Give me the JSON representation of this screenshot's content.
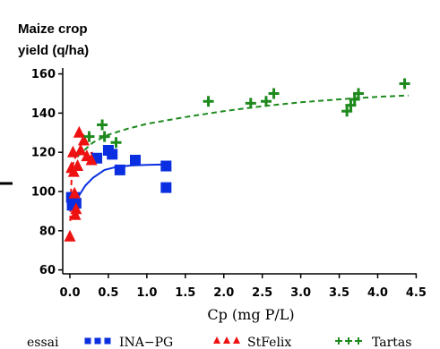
{
  "chart_data": {
    "type": "scatter",
    "ylabel_line1": "Maize crop",
    "ylabel_line2": "yield (q/ha)",
    "xlabel": "Cp (mg P/L)",
    "xlim": [
      0,
      4.6
    ],
    "ylim": [
      58,
      163
    ],
    "xticks": [
      0.0,
      0.5,
      1.0,
      1.5,
      2.0,
      2.5,
      3.0,
      3.5,
      4.0,
      4.5
    ],
    "xtick_labels": [
      "0.0",
      "0.5",
      "1.0",
      "1.5",
      "2.0",
      "2.5",
      "3.0",
      "3.5",
      "4.0",
      "4.5"
    ],
    "yticks": [
      60,
      80,
      100,
      120,
      140,
      160
    ],
    "ytick_labels": [
      "60",
      "80",
      "100",
      "120",
      "140",
      "160"
    ],
    "legend_title": "essai",
    "series": [
      {
        "name": "INA−PG",
        "color": "#0a2fe0",
        "marker": "square",
        "points": [
          [
            0.02,
            97
          ],
          [
            0.03,
            93
          ],
          [
            0.05,
            95
          ],
          [
            0.06,
            97
          ],
          [
            0.08,
            94
          ],
          [
            0.35,
            117
          ],
          [
            0.5,
            121
          ],
          [
            0.55,
            119
          ],
          [
            0.65,
            111
          ],
          [
            0.85,
            116
          ],
          [
            1.25,
            113
          ],
          [
            1.25,
            102
          ]
        ],
        "fit": [
          [
            0.08,
            91
          ],
          [
            0.12,
            98
          ],
          [
            0.2,
            103
          ],
          [
            0.3,
            107
          ],
          [
            0.45,
            111
          ],
          [
            0.6,
            112.5
          ],
          [
            0.8,
            113.3
          ],
          [
            1.0,
            113.6
          ],
          [
            1.25,
            113.8
          ]
        ]
      },
      {
        "name": "StFelix",
        "color": "#ee1111",
        "marker": "triangle",
        "points": [
          [
            0.0,
            77
          ],
          [
            0.02,
            112
          ],
          [
            0.04,
            120
          ],
          [
            0.05,
            110
          ],
          [
            0.06,
            99
          ],
          [
            0.07,
            88
          ],
          [
            0.08,
            91
          ],
          [
            0.1,
            113
          ],
          [
            0.12,
            130
          ],
          [
            0.14,
            121
          ],
          [
            0.18,
            126
          ],
          [
            0.22,
            118
          ],
          [
            0.28,
            116
          ]
        ],
        "fit": [
          [
            0.005,
            85
          ],
          [
            0.01,
            96
          ],
          [
            0.02,
            105
          ],
          [
            0.035,
            112
          ],
          [
            0.05,
            116
          ],
          [
            0.08,
            118
          ],
          [
            0.12,
            119
          ],
          [
            0.2,
            119.5
          ],
          [
            0.3,
            119.7
          ]
        ]
      },
      {
        "name": "Tartas",
        "color": "#1e8a1e",
        "marker": "plus",
        "points": [
          [
            0.25,
            128
          ],
          [
            0.42,
            134
          ],
          [
            0.45,
            128
          ],
          [
            0.6,
            125
          ],
          [
            1.8,
            146
          ],
          [
            2.35,
            145
          ],
          [
            2.55,
            146
          ],
          [
            2.65,
            150
          ],
          [
            3.6,
            141
          ],
          [
            3.65,
            144
          ],
          [
            3.7,
            147
          ],
          [
            3.75,
            150
          ],
          [
            4.35,
            155
          ]
        ],
        "fit": [
          [
            0.1,
            118
          ],
          [
            0.3,
            125
          ],
          [
            0.5,
            129
          ],
          [
            0.75,
            132
          ],
          [
            1.0,
            134.5
          ],
          [
            1.5,
            138
          ],
          [
            2.0,
            141
          ],
          [
            2.5,
            143.5
          ],
          [
            3.0,
            145.5
          ],
          [
            3.5,
            147
          ],
          [
            4.0,
            148.3
          ],
          [
            4.4,
            149
          ]
        ]
      }
    ]
  }
}
